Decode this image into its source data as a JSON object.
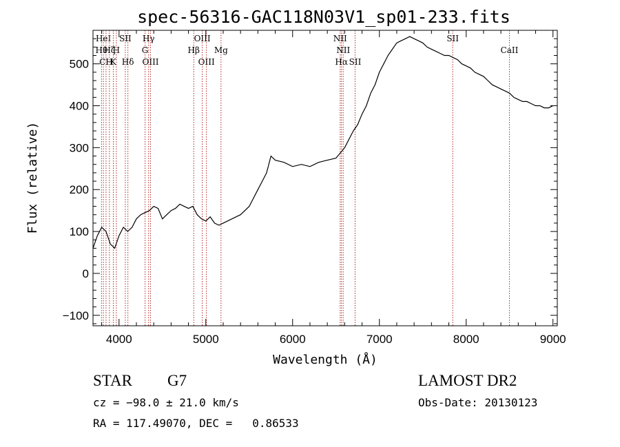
{
  "chart_data": {
    "type": "line",
    "title": "spec-56316-GAC118N03V1_sp01-233.fits",
    "xlabel": "Wavelength (Å)",
    "ylabel": "Flux (relative)",
    "xlim": [
      3700,
      9050
    ],
    "ylim": [
      -125,
      580
    ],
    "xticks": [
      4000,
      5000,
      6000,
      7000,
      8000,
      9000
    ],
    "yticks": [
      -100,
      0,
      100,
      200,
      300,
      400,
      500
    ],
    "xtick_labels": [
      "4000",
      "5000",
      "6000",
      "7000",
      "8000",
      "9000"
    ],
    "ytick_labels": [
      "−100",
      "0",
      "100",
      "200",
      "300",
      "400",
      "500"
    ],
    "line_color": "#000000",
    "marker_color": "#b22222",
    "grid": false,
    "series": [
      {
        "x": [
          3700,
          3750,
          3800,
          3850,
          3900,
          3950,
          4000,
          4050,
          4100,
          4150,
          4200,
          4250,
          4300,
          4350,
          4400,
          4450,
          4500,
          4550,
          4600,
          4650,
          4700,
          4750,
          4800,
          4850,
          4900,
          4950,
          5000,
          5050,
          5100,
          5150,
          5200,
          5300,
          5400,
          5500,
          5600,
          5650,
          5700,
          5750,
          5800,
          5900,
          6000,
          6100,
          6200,
          6300,
          6400,
          6500,
          6560,
          6600,
          6650,
          6700,
          6750,
          6800,
          6850,
          6900,
          6950,
          7000,
          7050,
          7100,
          7150,
          7200,
          7250,
          7300,
          7350,
          7400,
          7450,
          7500,
          7550,
          7600,
          7650,
          7700,
          7750,
          7800,
          7850,
          7900,
          7950,
          8000,
          8050,
          8100,
          8150,
          8200,
          8250,
          8300,
          8350,
          8400,
          8450,
          8500,
          8550,
          8600,
          8650,
          8700,
          8750,
          8800,
          8850,
          8900,
          8950,
          9000
        ],
        "y": [
          60,
          90,
          110,
          100,
          70,
          60,
          90,
          110,
          100,
          110,
          130,
          140,
          145,
          150,
          160,
          155,
          130,
          140,
          150,
          155,
          165,
          160,
          155,
          160,
          140,
          130,
          125,
          135,
          120,
          115,
          120,
          130,
          140,
          160,
          200,
          220,
          240,
          280,
          270,
          265,
          255,
          260,
          255,
          265,
          270,
          275,
          290,
          300,
          320,
          340,
          355,
          380,
          400,
          430,
          450,
          480,
          500,
          520,
          535,
          550,
          555,
          560,
          565,
          560,
          555,
          550,
          540,
          535,
          530,
          525,
          520,
          520,
          515,
          510,
          500,
          495,
          490,
          480,
          475,
          470,
          460,
          450,
          445,
          440,
          435,
          430,
          420,
          415,
          410,
          410,
          405,
          400,
          400,
          395,
          395,
          400
        ]
      }
    ],
    "line_markers": [
      {
        "wl": 3798,
        "row": 1,
        "label": "Hθ"
      },
      {
        "wl": 3820,
        "row": 0,
        "label": "HeI"
      },
      {
        "wl": 3850,
        "row": 2,
        "label": "CH"
      },
      {
        "wl": 3889,
        "row": 1,
        "label": "Hζ"
      },
      {
        "wl": 3934,
        "row": 2,
        "label": "K"
      },
      {
        "wl": 3969,
        "row": 1,
        "label": "H"
      },
      {
        "wl": 4072,
        "row": 0,
        "label": "SII"
      },
      {
        "wl": 4102,
        "row": 2,
        "label": "Hδ"
      },
      {
        "wl": 4300,
        "row": 1,
        "label": "G"
      },
      {
        "wl": 4341,
        "row": 0,
        "label": "Hγ"
      },
      {
        "wl": 4363,
        "row": 2,
        "label": "OIII"
      },
      {
        "wl": 4861,
        "row": 1,
        "label": "Hβ"
      },
      {
        "wl": 4959,
        "row": 0,
        "label": "OIII"
      },
      {
        "wl": 5007,
        "row": 2,
        "label": "OIII"
      },
      {
        "wl": 5175,
        "row": 1,
        "label": "Mg"
      },
      {
        "wl": 6548,
        "row": 0,
        "label": "NII"
      },
      {
        "wl": 6563,
        "row": 2,
        "label": "Hα"
      },
      {
        "wl": 6583,
        "row": 1,
        "label": "NII"
      },
      {
        "wl": 6720,
        "row": 2,
        "label": "SII"
      },
      {
        "wl": 7845,
        "row": 0,
        "label": "SII"
      },
      {
        "wl": 8498,
        "row": 1,
        "label": "CaII"
      }
    ]
  },
  "info": {
    "object_class": "STAR",
    "subclass": "G7",
    "survey": "LAMOST DR2",
    "cz": "cz = −98.0 ± 21.0 km/s",
    "obs_date": "Obs-Date: 20130123",
    "radec": "RA = 117.49070, DEC =   0.86533"
  }
}
